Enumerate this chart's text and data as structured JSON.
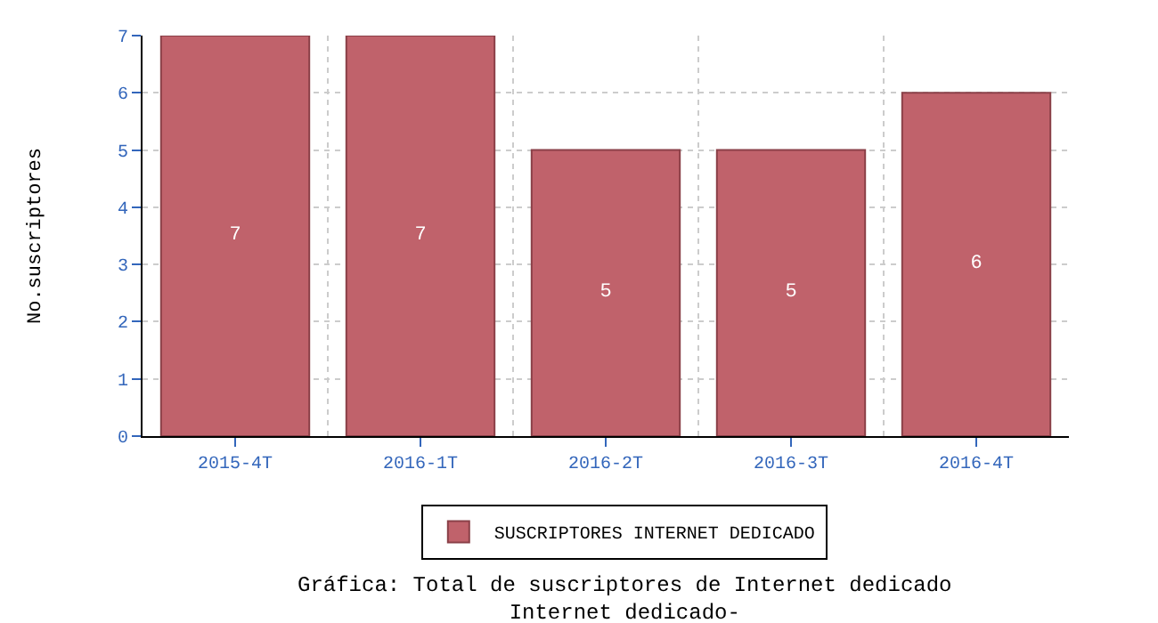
{
  "chart_data": {
    "type": "bar",
    "title": "Gráfica: Total de suscriptores de Internet dedicado",
    "subtitle": "Internet dedicado-",
    "ylabel": "No.suscriptores",
    "categories": [
      "2015-4T",
      "2016-1T",
      "2016-2T",
      "2016-3T",
      "2016-4T"
    ],
    "series": [
      {
        "name": "SUSCRIPTORES INTERNET DEDICADO",
        "color": "#c0626b",
        "values": [
          7,
          7,
          5,
          5,
          6
        ]
      }
    ],
    "ylim": [
      0,
      7
    ],
    "yticks": [
      0,
      1,
      2,
      3,
      4,
      5,
      6,
      7
    ],
    "grid": true,
    "legend": "bottom",
    "data_labels": true
  }
}
